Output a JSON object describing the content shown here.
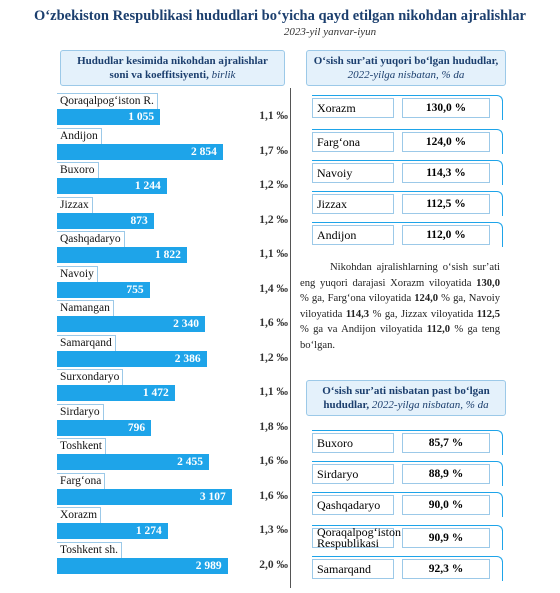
{
  "header": {
    "title": "Oʻzbekiston Respublikasi hududlari boʻyicha qayd etilgan nikohdan ajralishlar",
    "subtitle": "2023-yil yanvar-iyun"
  },
  "chart_data": {
    "type": "bar",
    "orientation": "horizontal",
    "title": "Hududlar kesimida nikohdan ajralishlar soni va koeffitsiyenti",
    "unit": "birlik",
    "color": "#1ea4e9",
    "categories": [
      "Qoraqalpogʻiston R.",
      "Andijon",
      "Buxoro",
      "Jizzax",
      "Qashqadaryo",
      "Navoiy",
      "Namangan",
      "Samarqand",
      "Surxondaryo",
      "Sirdaryo",
      "Toshkent",
      "Fargʻona",
      "Xorazm",
      "Toshkent sh."
    ],
    "values": [
      1055,
      2854,
      1244,
      873,
      1822,
      755,
      2340,
      2386,
      1472,
      796,
      2455,
      3107,
      1274,
      2989
    ],
    "value_labels": [
      "1 055",
      "2 854",
      "1 244",
      "873",
      "1 822",
      "755",
      "2 340",
      "2 386",
      "1 472",
      "796",
      "2 455",
      "3 107",
      "1 274",
      "2 989"
    ],
    "coefficient_labels": [
      "1,1 ‰",
      "1,7 ‰",
      "1,2 ‰",
      "1,2 ‰",
      "1,1 ‰",
      "1,4 ‰",
      "1,6 ‰",
      "1,2 ‰",
      "1,1 ‰",
      "1,8 ‰",
      "1,6 ‰",
      "1,6 ‰",
      "1,3 ‰",
      "2,0 ‰"
    ],
    "xlim": [
      -1900,
      3200
    ]
  },
  "top_growth": {
    "title": "Oʻsish surʼati yuqori boʻlgan hududlar",
    "subtitle": "2022-yilga nisbatan, % da",
    "items": [
      {
        "name": "Xorazm",
        "value": "130,0 %"
      },
      {
        "name": "Fargʻona",
        "value": "124,0 %"
      },
      {
        "name": "Navoiy",
        "value": "114,3 %"
      },
      {
        "name": "Jizzax",
        "value": "112,5 %"
      },
      {
        "name": "Andijon",
        "value": "112,0 %"
      }
    ]
  },
  "paragraph": [
    {
      "text": "Nikohdan ajralishlarning oʻsish surʼati eng yuqori darajasi Xorazm viloyatida ",
      "bold": false
    },
    {
      "text": "130,0",
      "bold": true
    },
    {
      "text": " % ga, Fargʻona viloyatida ",
      "bold": false
    },
    {
      "text": "124,0",
      "bold": true
    },
    {
      "text": " % ga, Navoiy viloyatida ",
      "bold": false
    },
    {
      "text": "114,3",
      "bold": true
    },
    {
      "text": " % ga, Jizzax viloyatida ",
      "bold": false
    },
    {
      "text": "112,5",
      "bold": true
    },
    {
      "text": " % ga va Andijon viloyatida ",
      "bold": false
    },
    {
      "text": "112,0",
      "bold": true
    },
    {
      "text": " % ga teng boʻlgan.",
      "bold": false
    }
  ],
  "low_growth": {
    "title": "Oʻsish surʼati nisbatan past boʻlgan hududlar",
    "subtitle": "2022-yilga nisbatan, % da",
    "items": [
      {
        "name": "Buxoro",
        "value": "85,7 %"
      },
      {
        "name": "Sirdaryo",
        "value": "88,9 %"
      },
      {
        "name": "Qashqadaryo",
        "value": "90,0 %"
      },
      {
        "name": "Qoraqalpogʻiston Respublikasi",
        "value": "90,9 %"
      },
      {
        "name": "Samarqand",
        "value": "92,3 %"
      }
    ]
  }
}
